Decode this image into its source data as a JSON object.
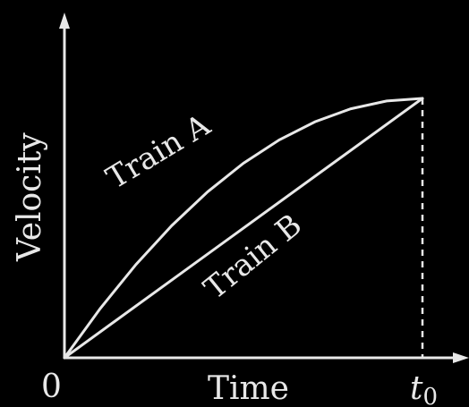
{
  "chart_data": {
    "type": "line",
    "ylabel": "Velocity",
    "xlabel": "Time",
    "origin_label": "0",
    "x_end_label": "t",
    "x_end_label_sub": "0",
    "xlim": [
      0,
      1
    ],
    "ylim": [
      0,
      1.2
    ],
    "series": [
      {
        "name": "Train A",
        "x": [
          0,
          0.1,
          0.2,
          0.3,
          0.4,
          0.5,
          0.6,
          0.7,
          0.8,
          0.9,
          1.0
        ],
        "y": [
          0,
          0.19,
          0.36,
          0.51,
          0.64,
          0.75,
          0.84,
          0.91,
          0.96,
          0.99,
          1.0
        ]
      },
      {
        "name": "Train B",
        "x": [
          0,
          1.0
        ],
        "y": [
          0,
          1.0
        ]
      }
    ],
    "guide": {
      "type": "vertical-dashed",
      "x": 1.0
    }
  },
  "colors": {
    "background": "#000000",
    "ink": "#e8e8e8"
  }
}
